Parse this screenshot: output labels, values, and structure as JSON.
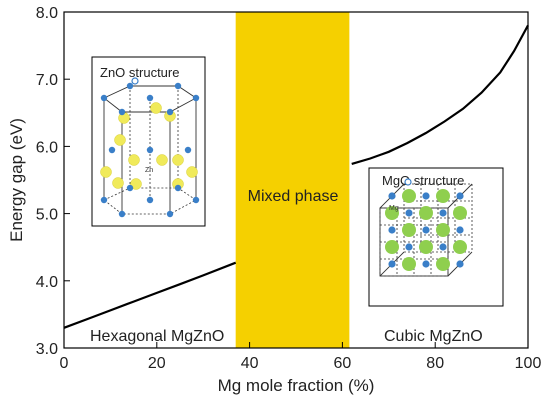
{
  "chart_data": {
    "type": "line",
    "title": "",
    "xlabel": "Mg mole fraction (%)",
    "ylabel": "Energy gap (eV)",
    "xlim": [
      0,
      100
    ],
    "ylim": [
      3.0,
      8.0
    ],
    "xticks": [
      "0",
      "20",
      "40",
      "60",
      "80",
      "100"
    ],
    "yticks": [
      "3.0",
      "4.0",
      "5.0",
      "6.0",
      "7.0",
      "8.0"
    ],
    "grid": false,
    "series": [
      {
        "segment": "hexagonal",
        "x": [
          0,
          5,
          10,
          15,
          20,
          25,
          30,
          37
        ],
        "y": [
          3.3,
          3.43,
          3.56,
          3.69,
          3.82,
          3.95,
          4.08,
          4.27
        ]
      },
      {
        "segment": "cubic",
        "x": [
          62,
          66,
          70,
          74,
          78,
          82,
          86,
          90,
          94,
          97,
          100
        ],
        "y": [
          5.74,
          5.82,
          5.92,
          6.05,
          6.2,
          6.37,
          6.56,
          6.8,
          7.1,
          7.42,
          7.8
        ]
      }
    ],
    "shaded_region": {
      "x_start": 37,
      "x_end": 61.5,
      "label": "Mixed phase",
      "color": "#f5d000"
    },
    "annotations": {
      "left_phase": "Hexagonal MgZnO",
      "right_phase": "Cubic MgZnO"
    },
    "insets": {
      "zno": {
        "title": "ZnO structure",
        "atom_label": "Zn",
        "colors": {
          "metal": "#f0ea5a",
          "oxygen": "#3a7fc8"
        }
      },
      "mgo": {
        "title": "MgO structure",
        "atom_label": "Mg",
        "colors": {
          "metal": "#8fcf4e",
          "oxygen": "#3a7fc8"
        }
      }
    },
    "line_color": "#000000"
  }
}
